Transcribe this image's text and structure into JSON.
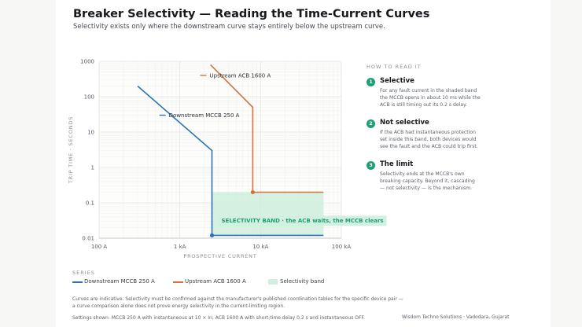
{
  "title": "Breaker Selectivity — Reading the Time-Current Curves",
  "subtitle": "Selectivity exists only where the downstream curve stays entirely below the upstream curve.",
  "colors": {
    "downstream": "#2f72b8",
    "upstream": "#d4723f",
    "band": "#c8ecd9",
    "band_text": "#1f9e74",
    "accent": "#1f9e74"
  },
  "chart_data": {
    "type": "line",
    "x_scale": "log",
    "y_scale": "log",
    "xlim": [
      100,
      100000
    ],
    "ylim": [
      0.01,
      1000
    ],
    "grid": true,
    "xlabel": "PROSPECTIVE CURRENT",
    "ylabel": "TRIP TIME · SECONDS",
    "xticks": [
      100,
      1000,
      10000,
      100000
    ],
    "xtick_labels": [
      "100 A",
      "1 kA",
      "10 kA",
      "100 kA"
    ],
    "yticks": [
      1000,
      100,
      10,
      1,
      0.1,
      0.01
    ],
    "ytick_labels": [
      "1000",
      "100",
      "10",
      "1",
      "0.1",
      "0.01"
    ],
    "series": [
      {
        "name": "Downstream MCCB 250 A",
        "x": [
          300,
          2500,
          2500,
          60000
        ],
        "y": [
          200,
          3,
          0.012,
          0.012
        ],
        "marker_index": 2
      },
      {
        "name": "Upstream ACB 1600 A",
        "x": [
          2400,
          8000,
          8000,
          60000
        ],
        "y": [
          800,
          50,
          0.2,
          0.2
        ],
        "marker_index": 2
      }
    ],
    "band": {
      "name": "Selectivity band",
      "x": [
        2500,
        60000
      ],
      "y": [
        0.012,
        0.2
      ],
      "label": "SELECTIVITY BAND · the ACB waits, the MCCB clears"
    }
  },
  "side": {
    "heading": "HOW TO READ IT",
    "steps": [
      {
        "num": "1",
        "title": "Selective",
        "body": "For any fault current in the shaded band the MCCB opens in about 10 ms while the ACB is still timing out its 0.2 s delay."
      },
      {
        "num": "2",
        "title": "Not selective",
        "body": "If the ACB had instantaneous protection set inside this band, both devices would see the fault and the ACB could trip first."
      },
      {
        "num": "3",
        "title": "The limit",
        "body": "Selectivity ends at the MCCB's own breaking capacity. Beyond it, cascading — not selectivity — is the mechanism."
      }
    ]
  },
  "legend": {
    "label": "SERIES",
    "items": [
      "Downstream MCCB 250 A",
      "Upstream ACB 1600 A",
      "Selectivity band"
    ]
  },
  "footer": {
    "note1": "Curves are indicative. Selectivity must be confirmed against the manufacturer's published coordination tables for the specific device pair —",
    "note2": "a curve comparison alone does not prove energy selectivity in the current-limiting region.",
    "settings": "Settings shown: MCCB 250 A with instantaneous at 10 × In; ACB 1600 A with short-time delay 0.2 s and instantaneous OFF.",
    "credit": "Wisdom Techno Solutions · Vadodara, Gujarat"
  }
}
